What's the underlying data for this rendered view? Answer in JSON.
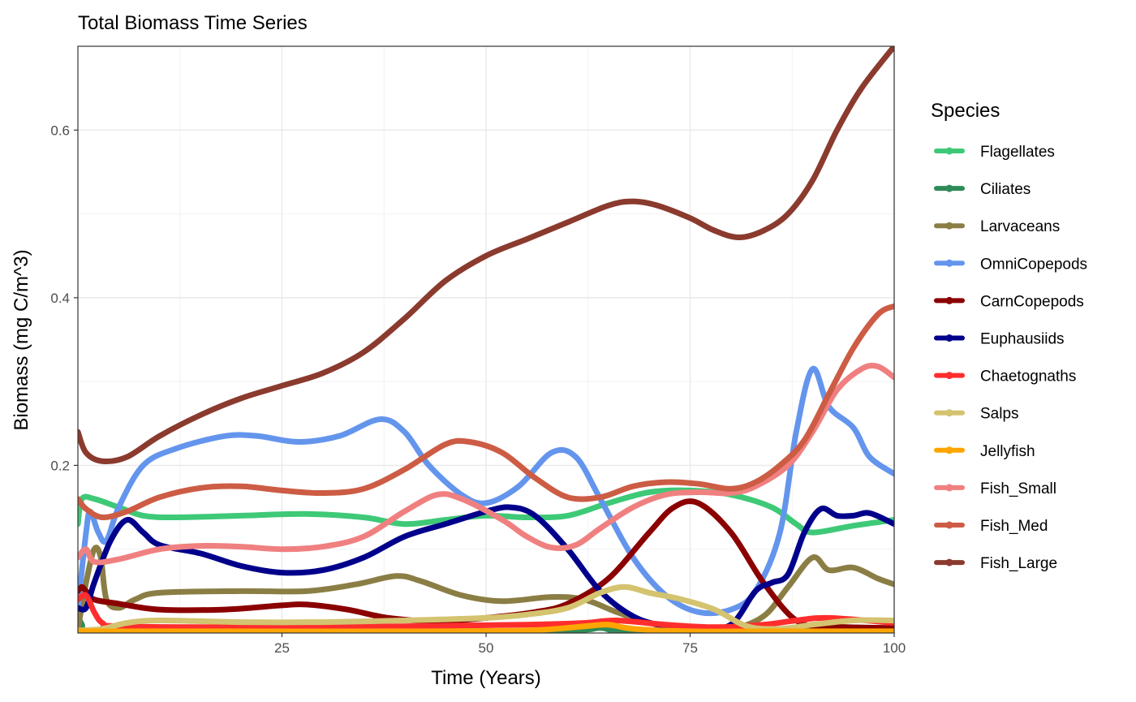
{
  "chart_data": {
    "type": "line",
    "title": "Total Biomass Time Series",
    "xlabel": "Time (Years)",
    "ylabel": "Biomass (mg C/m^3)",
    "xlim": [
      0,
      100
    ],
    "ylim": [
      0,
      0.7
    ],
    "x_ticks": [
      25,
      50,
      75,
      100
    ],
    "x_tick_labels": [
      "25",
      "50",
      "75",
      "100"
    ],
    "y_ticks": [
      0.2,
      0.4,
      0.6
    ],
    "y_tick_labels": [
      "0.2",
      "0.4",
      "0.6"
    ],
    "grid": true,
    "legend_title": "Species",
    "legend_position": "right",
    "series": [
      {
        "name": "Flagellates",
        "color": "#3ec977",
        "points": [
          [
            0,
            0.13
          ],
          [
            0.5,
            0.16
          ],
          [
            2,
            0.16
          ],
          [
            5,
            0.15
          ],
          [
            8,
            0.14
          ],
          [
            12,
            0.138
          ],
          [
            20,
            0.14
          ],
          [
            28,
            0.142
          ],
          [
            35,
            0.138
          ],
          [
            40,
            0.13
          ],
          [
            45,
            0.135
          ],
          [
            50,
            0.14
          ],
          [
            55,
            0.138
          ],
          [
            60,
            0.14
          ],
          [
            65,
            0.155
          ],
          [
            70,
            0.168
          ],
          [
            75,
            0.17
          ],
          [
            80,
            0.165
          ],
          [
            85,
            0.15
          ],
          [
            88,
            0.13
          ],
          [
            90,
            0.12
          ],
          [
            95,
            0.128
          ],
          [
            100,
            0.135
          ]
        ]
      },
      {
        "name": "Ciliates",
        "color": "#2e8b57",
        "points": [
          [
            0,
            0.02
          ],
          [
            0.5,
            0.01
          ],
          [
            1,
            0.003
          ],
          [
            5,
            0.002
          ],
          [
            20,
            0.002
          ],
          [
            40,
            0.002
          ],
          [
            60,
            0.003
          ],
          [
            64,
            0.006
          ],
          [
            67,
            0.002
          ],
          [
            80,
            0.002
          ],
          [
            90,
            0.005
          ],
          [
            95,
            0.006
          ],
          [
            100,
            0.004
          ]
        ]
      },
      {
        "name": "Larvaceans",
        "color": "#8b7e45",
        "points": [
          [
            0,
            0.005
          ],
          [
            1,
            0.06
          ],
          [
            2,
            0.1
          ],
          [
            2.8,
            0.09
          ],
          [
            3.5,
            0.04
          ],
          [
            5,
            0.03
          ],
          [
            7,
            0.04
          ],
          [
            10,
            0.048
          ],
          [
            20,
            0.05
          ],
          [
            28,
            0.05
          ],
          [
            34,
            0.058
          ],
          [
            39,
            0.068
          ],
          [
            42,
            0.062
          ],
          [
            47,
            0.045
          ],
          [
            52,
            0.038
          ],
          [
            58,
            0.043
          ],
          [
            62,
            0.04
          ],
          [
            66,
            0.025
          ],
          [
            70,
            0.012
          ],
          [
            75,
            0.005
          ],
          [
            80,
            0.005
          ],
          [
            84,
            0.02
          ],
          [
            87,
            0.055
          ],
          [
            90,
            0.09
          ],
          [
            92,
            0.075
          ],
          [
            95,
            0.078
          ],
          [
            98,
            0.065
          ],
          [
            100,
            0.058
          ]
        ]
      },
      {
        "name": "OmniCopepods",
        "color": "#6495ed",
        "points": [
          [
            0,
            0.03
          ],
          [
            1,
            0.12
          ],
          [
            1.5,
            0.145
          ],
          [
            2.5,
            0.12
          ],
          [
            3.5,
            0.11
          ],
          [
            5,
            0.15
          ],
          [
            8,
            0.2
          ],
          [
            12,
            0.22
          ],
          [
            18,
            0.235
          ],
          [
            22,
            0.235
          ],
          [
            27,
            0.228
          ],
          [
            32,
            0.235
          ],
          [
            37,
            0.255
          ],
          [
            40,
            0.24
          ],
          [
            43,
            0.2
          ],
          [
            47,
            0.165
          ],
          [
            50,
            0.155
          ],
          [
            54,
            0.175
          ],
          [
            58,
            0.215
          ],
          [
            61,
            0.21
          ],
          [
            64,
            0.16
          ],
          [
            68,
            0.09
          ],
          [
            72,
            0.045
          ],
          [
            76,
            0.025
          ],
          [
            80,
            0.028
          ],
          [
            83,
            0.05
          ],
          [
            86,
            0.12
          ],
          [
            88,
            0.24
          ],
          [
            90,
            0.315
          ],
          [
            92,
            0.27
          ],
          [
            95,
            0.245
          ],
          [
            97,
            0.21
          ],
          [
            100,
            0.19
          ]
        ]
      },
      {
        "name": "CarnCopepods",
        "color": "#8b0000",
        "points": [
          [
            0,
            0.05
          ],
          [
            0.5,
            0.055
          ],
          [
            1,
            0.05
          ],
          [
            2,
            0.04
          ],
          [
            5,
            0.035
          ],
          [
            10,
            0.028
          ],
          [
            18,
            0.028
          ],
          [
            25,
            0.033
          ],
          [
            28,
            0.034
          ],
          [
            33,
            0.028
          ],
          [
            38,
            0.018
          ],
          [
            44,
            0.014
          ],
          [
            50,
            0.018
          ],
          [
            56,
            0.025
          ],
          [
            60,
            0.035
          ],
          [
            65,
            0.065
          ],
          [
            70,
            0.12
          ],
          [
            73,
            0.15
          ],
          [
            76,
            0.155
          ],
          [
            80,
            0.12
          ],
          [
            84,
            0.06
          ],
          [
            88,
            0.015
          ],
          [
            92,
            0.008
          ],
          [
            100,
            0.006
          ]
        ]
      },
      {
        "name": "Euphausiids",
        "color": "#00008b",
        "points": [
          [
            0,
            0.03
          ],
          [
            1,
            0.03
          ],
          [
            2,
            0.06
          ],
          [
            4,
            0.11
          ],
          [
            6,
            0.135
          ],
          [
            8,
            0.12
          ],
          [
            10,
            0.105
          ],
          [
            15,
            0.095
          ],
          [
            20,
            0.08
          ],
          [
            25,
            0.072
          ],
          [
            30,
            0.075
          ],
          [
            35,
            0.09
          ],
          [
            40,
            0.115
          ],
          [
            45,
            0.13
          ],
          [
            50,
            0.145
          ],
          [
            53,
            0.15
          ],
          [
            56,
            0.14
          ],
          [
            60,
            0.1
          ],
          [
            64,
            0.05
          ],
          [
            68,
            0.02
          ],
          [
            72,
            0.008
          ],
          [
            76,
            0.005
          ],
          [
            80,
            0.01
          ],
          [
            83,
            0.05
          ],
          [
            85,
            0.06
          ],
          [
            87,
            0.07
          ],
          [
            89,
            0.12
          ],
          [
            91,
            0.148
          ],
          [
            93,
            0.14
          ],
          [
            95,
            0.14
          ],
          [
            97,
            0.143
          ],
          [
            100,
            0.13
          ]
        ]
      },
      {
        "name": "Chaetognaths",
        "color": "#ff2d2d",
        "points": [
          [
            0,
            0.04
          ],
          [
            1,
            0.045
          ],
          [
            2,
            0.025
          ],
          [
            3,
            0.012
          ],
          [
            5,
            0.008
          ],
          [
            20,
            0.007
          ],
          [
            40,
            0.008
          ],
          [
            55,
            0.01
          ],
          [
            62,
            0.012
          ],
          [
            66,
            0.015
          ],
          [
            72,
            0.01
          ],
          [
            78,
            0.007
          ],
          [
            84,
            0.01
          ],
          [
            88,
            0.015
          ],
          [
            92,
            0.018
          ],
          [
            100,
            0.012
          ]
        ]
      },
      {
        "name": "Salps",
        "color": "#d4c36f",
        "points": [
          [
            0,
            0.003
          ],
          [
            3,
            0.005
          ],
          [
            6,
            0.012
          ],
          [
            10,
            0.015
          ],
          [
            20,
            0.013
          ],
          [
            30,
            0.013
          ],
          [
            40,
            0.015
          ],
          [
            50,
            0.018
          ],
          [
            55,
            0.022
          ],
          [
            60,
            0.03
          ],
          [
            64,
            0.048
          ],
          [
            67,
            0.055
          ],
          [
            70,
            0.048
          ],
          [
            74,
            0.04
          ],
          [
            78,
            0.028
          ],
          [
            82,
            0.008
          ],
          [
            86,
            0.005
          ],
          [
            90,
            0.01
          ],
          [
            95,
            0.015
          ],
          [
            100,
            0.015
          ]
        ]
      },
      {
        "name": "Jellyfish",
        "color": "#ffa500",
        "points": [
          [
            0,
            0.002
          ],
          [
            20,
            0.002
          ],
          [
            40,
            0.002
          ],
          [
            55,
            0.003
          ],
          [
            62,
            0.008
          ],
          [
            65,
            0.01
          ],
          [
            68,
            0.005
          ],
          [
            75,
            0.002
          ],
          [
            85,
            0.002
          ],
          [
            100,
            0.002
          ]
        ]
      },
      {
        "name": "Fish_Small",
        "color": "#f08080",
        "points": [
          [
            0,
            0.09
          ],
          [
            1,
            0.1
          ],
          [
            2,
            0.085
          ],
          [
            5,
            0.088
          ],
          [
            10,
            0.1
          ],
          [
            15,
            0.104
          ],
          [
            20,
            0.103
          ],
          [
            25,
            0.1
          ],
          [
            30,
            0.103
          ],
          [
            35,
            0.115
          ],
          [
            40,
            0.145
          ],
          [
            44,
            0.165
          ],
          [
            47,
            0.16
          ],
          [
            52,
            0.135
          ],
          [
            55,
            0.115
          ],
          [
            58,
            0.102
          ],
          [
            61,
            0.105
          ],
          [
            64,
            0.125
          ],
          [
            68,
            0.15
          ],
          [
            72,
            0.165
          ],
          [
            76,
            0.168
          ],
          [
            80,
            0.167
          ],
          [
            83,
            0.175
          ],
          [
            87,
            0.2
          ],
          [
            90,
            0.24
          ],
          [
            93,
            0.29
          ],
          [
            96,
            0.315
          ],
          [
            98,
            0.318
          ],
          [
            100,
            0.305
          ]
        ]
      },
      {
        "name": "Fish_Med",
        "color": "#cd5c45",
        "points": [
          [
            0,
            0.16
          ],
          [
            1,
            0.148
          ],
          [
            3,
            0.138
          ],
          [
            6,
            0.145
          ],
          [
            10,
            0.162
          ],
          [
            15,
            0.173
          ],
          [
            20,
            0.175
          ],
          [
            25,
            0.17
          ],
          [
            30,
            0.167
          ],
          [
            35,
            0.172
          ],
          [
            40,
            0.195
          ],
          [
            45,
            0.225
          ],
          [
            48,
            0.228
          ],
          [
            52,
            0.215
          ],
          [
            56,
            0.185
          ],
          [
            60,
            0.162
          ],
          [
            64,
            0.162
          ],
          [
            68,
            0.175
          ],
          [
            72,
            0.18
          ],
          [
            76,
            0.178
          ],
          [
            80,
            0.172
          ],
          [
            83,
            0.18
          ],
          [
            86,
            0.2
          ],
          [
            89,
            0.23
          ],
          [
            92,
            0.285
          ],
          [
            95,
            0.34
          ],
          [
            98,
            0.38
          ],
          [
            100,
            0.39
          ]
        ]
      },
      {
        "name": "Fish_Large",
        "color": "#8b3a2e",
        "points": [
          [
            0,
            0.24
          ],
          [
            1,
            0.215
          ],
          [
            3,
            0.205
          ],
          [
            6,
            0.21
          ],
          [
            10,
            0.235
          ],
          [
            15,
            0.26
          ],
          [
            20,
            0.28
          ],
          [
            25,
            0.295
          ],
          [
            30,
            0.31
          ],
          [
            35,
            0.335
          ],
          [
            40,
            0.375
          ],
          [
            45,
            0.42
          ],
          [
            50,
            0.45
          ],
          [
            55,
            0.47
          ],
          [
            60,
            0.49
          ],
          [
            65,
            0.51
          ],
          [
            68,
            0.515
          ],
          [
            71,
            0.51
          ],
          [
            75,
            0.495
          ],
          [
            78,
            0.48
          ],
          [
            81,
            0.472
          ],
          [
            84,
            0.48
          ],
          [
            87,
            0.5
          ],
          [
            90,
            0.54
          ],
          [
            93,
            0.6
          ],
          [
            96,
            0.65
          ],
          [
            100,
            0.7
          ]
        ]
      }
    ]
  }
}
